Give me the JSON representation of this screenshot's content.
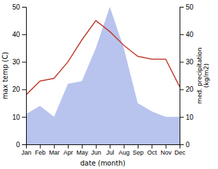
{
  "chart_data": {
    "type": "line",
    "xlabel": "date (month)",
    "ylabel": "max temp (C)",
    "y2label": "med. precipitation\n(kg/m2)",
    "categories": [
      "Jan",
      "Feb",
      "Mar",
      "Apr",
      "May",
      "Jun",
      "Jul",
      "Aug",
      "Sep",
      "Oct",
      "Nov",
      "Dec"
    ],
    "series": [
      {
        "type": "area",
        "axis": "y2",
        "color": "#b8c4ee",
        "values": [
          11,
          14,
          10,
          22,
          23,
          35,
          50,
          35,
          15,
          12,
          10,
          10
        ]
      },
      {
        "type": "line",
        "color": "#c0392b",
        "values": [
          18,
          23,
          24,
          30,
          38,
          45,
          41,
          36,
          32,
          31,
          31,
          21
        ]
      }
    ],
    "ylim": [
      0,
      50
    ],
    "yticks": [
      0,
      10,
      20,
      30,
      40,
      50
    ],
    "y2lim": [
      0,
      50
    ],
    "y2ticks": [
      0,
      10,
      20,
      30,
      40,
      50
    ],
    "grid": false
  }
}
